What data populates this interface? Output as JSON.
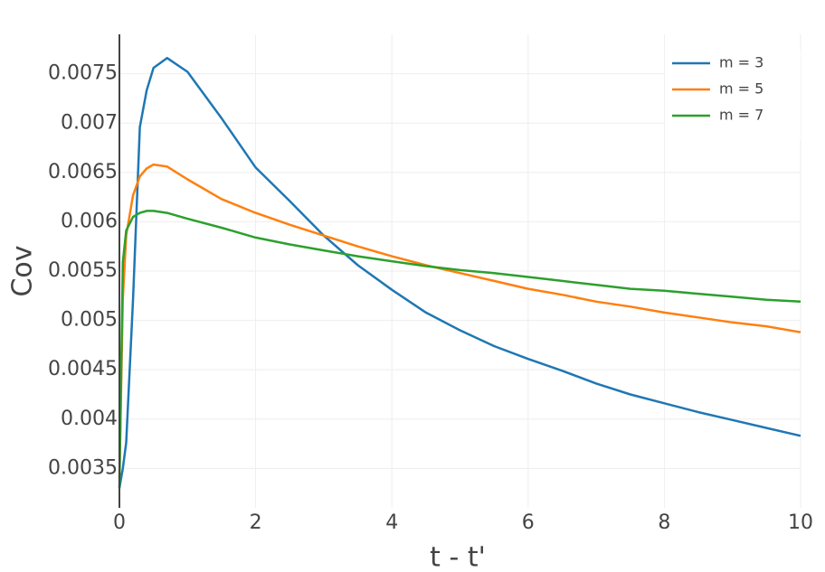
{
  "chart_data": {
    "type": "line",
    "x_label": "t - t'",
    "y_label": "Cov",
    "x": [
      0,
      0.05,
      0.1,
      0.2,
      0.3,
      0.4,
      0.5,
      0.7,
      1,
      1.5,
      2,
      2.5,
      3,
      3.5,
      4,
      4.5,
      5,
      5.5,
      6,
      6.5,
      7,
      7.5,
      8,
      8.5,
      9,
      9.5,
      10
    ],
    "series": [
      {
        "name": "m = 3",
        "color": "#1f77b4",
        "values": [
          0.0033,
          0.0035,
          0.00376,
          0.00522,
          0.00696,
          0.00733,
          0.00756,
          0.00766,
          0.00752,
          0.00705,
          0.00655,
          0.00621,
          0.00586,
          0.00556,
          0.00531,
          0.00508,
          0.0049,
          0.00474,
          0.00461,
          0.00449,
          0.00436,
          0.00425,
          0.00416,
          0.00407,
          0.00399,
          0.00391,
          0.00383
        ]
      },
      {
        "name": "m = 5",
        "color": "#ff7f0e",
        "values": [
          0.0034,
          0.00522,
          0.00586,
          0.00627,
          0.00646,
          0.00654,
          0.00658,
          0.00656,
          0.00643,
          0.00623,
          0.00609,
          0.00597,
          0.00586,
          0.00575,
          0.00565,
          0.00556,
          0.00548,
          0.0054,
          0.00532,
          0.00526,
          0.00519,
          0.00514,
          0.00508,
          0.00503,
          0.00498,
          0.00494,
          0.00488
        ]
      },
      {
        "name": "m = 7",
        "color": "#2ca02c",
        "values": [
          0.0033,
          0.00559,
          0.00591,
          0.00605,
          0.00609,
          0.00611,
          0.00611,
          0.00609,
          0.00603,
          0.00594,
          0.00584,
          0.00577,
          0.00571,
          0.00565,
          0.0056,
          0.00555,
          0.00551,
          0.00548,
          0.00544,
          0.0054,
          0.00536,
          0.00532,
          0.0053,
          0.00527,
          0.00524,
          0.00521,
          0.00519
        ]
      }
    ],
    "xlim": [
      0,
      10
    ],
    "xticks": [
      0,
      2,
      4,
      6,
      8,
      10
    ],
    "ylim": [
      0.0031,
      0.0079
    ],
    "yticks": [
      0.0035,
      0.004,
      0.0045,
      0.005,
      0.0055,
      0.006,
      0.0065,
      0.007,
      0.0075
    ],
    "grid": true,
    "legend": "top-right"
  }
}
